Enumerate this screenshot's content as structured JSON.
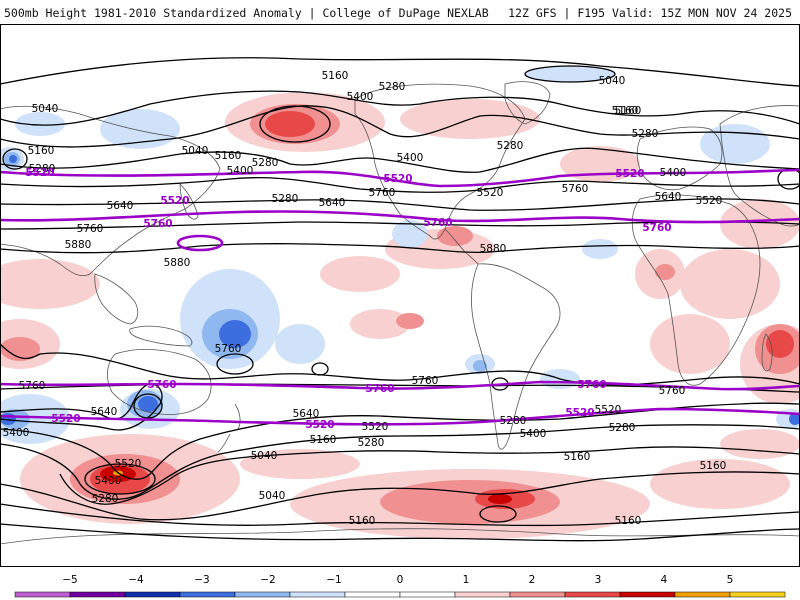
{
  "header": {
    "title_left": "500mb Height 1981-2010 Standardized Anomaly | College of DuPage NEXLAB",
    "title_right": "12Z GFS | F195 Valid: 15Z MON NOV 24 2025"
  },
  "colors": {
    "land_outline": "#555555",
    "black_contour": "#000000",
    "purple_contour": "#9b00c8",
    "pos1": "#f8d0d0",
    "pos2": "#f09090",
    "pos3": "#e84848",
    "pos4": "#c80000",
    "pos5": "#f0a000",
    "neg1": "#cfe2fa",
    "neg2": "#8fb8f0",
    "neg3": "#3c6ee0",
    "neg4": "#1030b0"
  },
  "contour_labels": {
    "black": [
      "5160",
      "5280",
      "5400",
      "5040",
      "5160",
      "5040",
      "5160",
      "5280",
      "5400",
      "5280",
      "5640",
      "5760",
      "5400",
      "5280",
      "5280",
      "5520",
      "5040",
      "5160",
      "5280",
      "5400",
      "5640",
      "5520",
      "5760",
      "5640",
      "5760",
      "5880",
      "5880",
      "5880",
      "5760",
      "5760",
      "5760",
      "5760",
      "5640",
      "5640",
      "5520",
      "5520",
      "5160",
      "5400",
      "5280",
      "5520",
      "5280",
      "5400",
      "5160",
      "5040",
      "5160",
      "5280",
      "5040",
      "5400",
      "5280",
      "5160",
      "5160",
      "5160"
    ],
    "purple": [
      "5520",
      "5520",
      "5520",
      "5520",
      "5760",
      "5760",
      "5760",
      "5760",
      "5760",
      "5760",
      "5520",
      "5520",
      "5520"
    ]
  },
  "colorbar": {
    "ticks": [
      "−5",
      "−4",
      "−3",
      "−2",
      "−1",
      "0",
      "1",
      "2",
      "3",
      "4",
      "5"
    ],
    "colors": [
      "#c060d0",
      "#7000a0",
      "#1030b0",
      "#3c6ee0",
      "#8fb8f0",
      "#cfe2fa",
      "#ffffff",
      "#ffffff",
      "#f8d0d0",
      "#f09090",
      "#e84848",
      "#c80000",
      "#f0a000",
      "#f8d020"
    ]
  }
}
